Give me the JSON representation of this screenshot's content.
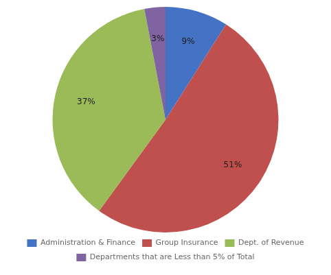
{
  "chart_data": {
    "type": "pie",
    "categories": [
      "Administration & Finance",
      "Group Insurance",
      "Dept. of Revenue",
      "Departments that are Less than 5% of Total"
    ],
    "values": [
      9,
      51,
      37,
      3
    ],
    "value_labels": [
      "9%",
      "51%",
      "37%",
      "3%"
    ],
    "colors": [
      "#4472c4",
      "#c0504d",
      "#9bbb59",
      "#8064a2"
    ],
    "data_labels": true,
    "legend": "bottom"
  }
}
